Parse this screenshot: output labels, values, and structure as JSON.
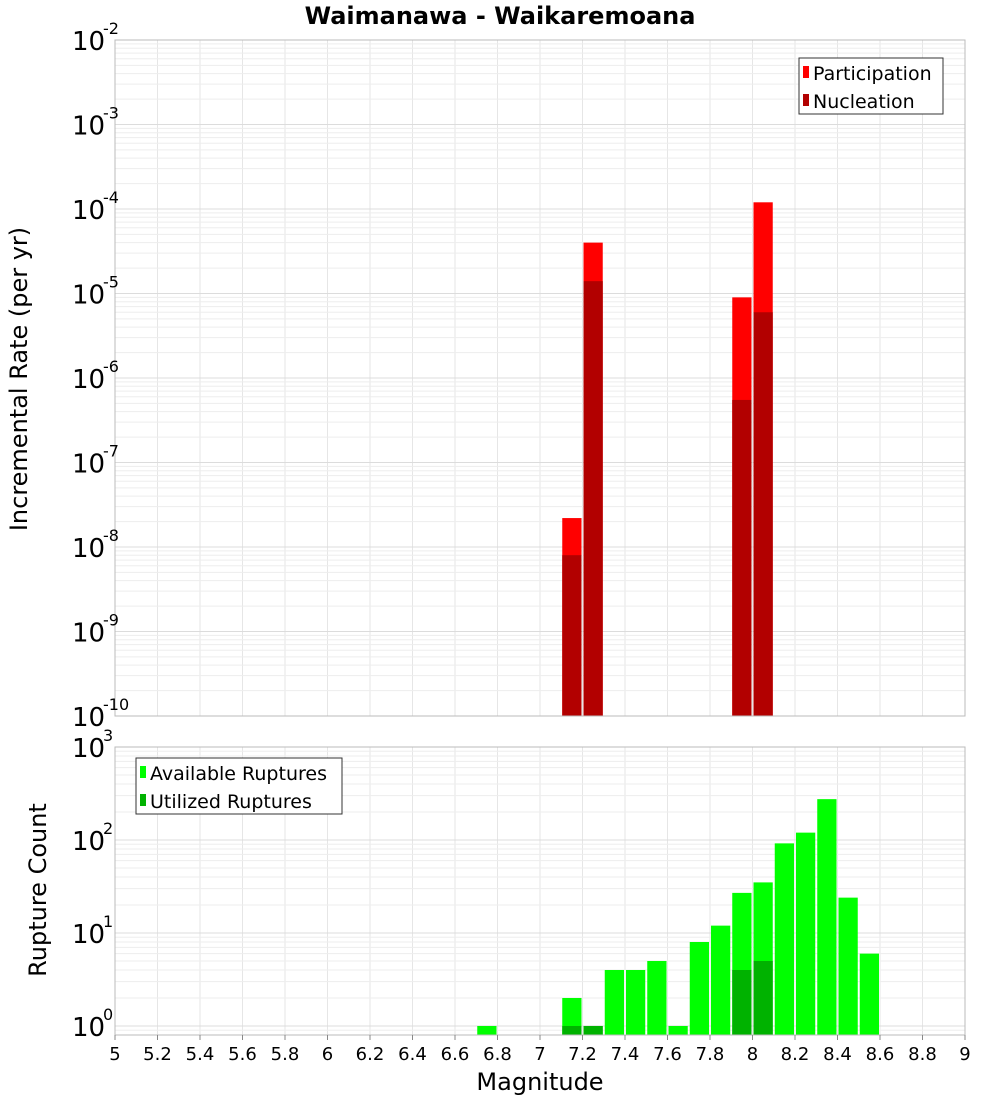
{
  "chart_data": [
    {
      "type": "bar",
      "title": "Waimanawa - Waikaremoana",
      "ylabel": "Incremental Rate (per yr)",
      "xlabel": "",
      "xlim": [
        5,
        9
      ],
      "bin_width": 0.1,
      "ylim": [
        1e-10,
        0.01
      ],
      "yscale": "log",
      "yticks": [
        {
          "base": "10",
          "exp": "-10"
        },
        {
          "base": "10",
          "exp": "-9"
        },
        {
          "base": "10",
          "exp": "-8"
        },
        {
          "base": "10",
          "exp": "-7"
        },
        {
          "base": "10",
          "exp": "-6"
        },
        {
          "base": "10",
          "exp": "-5"
        },
        {
          "base": "10",
          "exp": "-4"
        },
        {
          "base": "10",
          "exp": "-3"
        },
        {
          "base": "10",
          "exp": "-2"
        }
      ],
      "grid": true,
      "legend_position": "top-right",
      "series": [
        {
          "name": "Participation",
          "color": "#ff0000",
          "x": [
            7.15,
            7.25,
            7.95,
            8.05
          ],
          "values": [
            2.2e-08,
            4e-05,
            9e-06,
            0.00012
          ]
        },
        {
          "name": "Nucleation",
          "color": "#b20000",
          "x": [
            7.15,
            7.25,
            7.95,
            8.05
          ],
          "values": [
            8e-09,
            1.4e-05,
            5.5e-07,
            6e-06
          ]
        }
      ]
    },
    {
      "type": "bar",
      "title": "",
      "ylabel": "Rupture Count",
      "xlabel": "Magnitude",
      "xlim": [
        5,
        9
      ],
      "bin_width": 0.1,
      "ylim": [
        0.8,
        1000
      ],
      "yscale": "log",
      "yticks": [
        {
          "base": "10",
          "exp": "0"
        },
        {
          "base": "10",
          "exp": "1"
        },
        {
          "base": "10",
          "exp": "2"
        },
        {
          "base": "10",
          "exp": "3"
        }
      ],
      "xticks": [
        "5",
        "5.2",
        "5.4",
        "5.6",
        "5.8",
        "6",
        "6.2",
        "6.4",
        "6.6",
        "6.8",
        "7",
        "7.2",
        "7.4",
        "7.6",
        "7.8",
        "8",
        "8.2",
        "8.4",
        "8.6",
        "8.8",
        "9"
      ],
      "grid": true,
      "legend_position": "top-left",
      "series": [
        {
          "name": "Available Ruptures",
          "color": "#00ff00",
          "x": [
            6.75,
            7.15,
            7.25,
            7.35,
            7.45,
            7.55,
            7.65,
            7.75,
            7.85,
            7.95,
            8.05,
            8.15,
            8.25,
            8.35,
            8.45,
            8.55
          ],
          "values": [
            1,
            2,
            1,
            4,
            4,
            5,
            1,
            8,
            12,
            27,
            35,
            92,
            120,
            275,
            24,
            6
          ]
        },
        {
          "name": "Utilized Ruptures",
          "color": "#00b200",
          "x": [
            7.15,
            7.25,
            7.95,
            8.05
          ],
          "values": [
            1,
            1,
            4,
            5
          ]
        }
      ]
    }
  ]
}
